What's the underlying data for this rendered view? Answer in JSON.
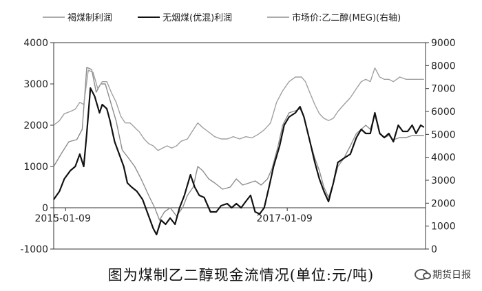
{
  "chart_data": {
    "type": "line",
    "legend": [
      {
        "name": "褐煤制利润",
        "color": "#909090"
      },
      {
        "name": "无烟煤(优混)利润",
        "color": "#111111"
      },
      {
        "name": "市场价:乙二醇(MEG)(右轴)",
        "color": "#909090"
      }
    ],
    "legend_position": "top",
    "x_axis": {
      "range": [
        "2014-12-01",
        "2018-04-10"
      ],
      "tick_labels": [
        {
          "date": "2015-01-09",
          "label": "2015-01-09"
        },
        {
          "date": "2017-01-09",
          "label": "2017-01-09"
        }
      ]
    },
    "y_left": {
      "range": [
        -1000,
        4000
      ],
      "ticks": [
        -1000,
        0,
        1000,
        2000,
        3000,
        4000
      ]
    },
    "y_right": {
      "range": [
        0,
        9000
      ],
      "ticks": [
        0,
        1000,
        2000,
        3000,
        4000,
        5000,
        6000,
        7000,
        8000,
        9000
      ]
    },
    "grid": false,
    "series": [
      {
        "name": "褐煤制利润",
        "axis": "left",
        "color": "#8c8c8c",
        "points": [
          [
            "2014-12-01",
            1000
          ],
          [
            "2014-12-25",
            1300
          ],
          [
            "2015-01-20",
            1600
          ],
          [
            "2015-02-15",
            1650
          ],
          [
            "2015-03-05",
            1900
          ],
          [
            "2015-03-20",
            3400
          ],
          [
            "2015-04-05",
            3350
          ],
          [
            "2015-04-20",
            2800
          ],
          [
            "2015-05-05",
            3000
          ],
          [
            "2015-05-20",
            3000
          ],
          [
            "2015-06-05",
            2600
          ],
          [
            "2015-06-25",
            2100
          ],
          [
            "2015-07-15",
            1400
          ],
          [
            "2015-08-05",
            1200
          ],
          [
            "2015-08-25",
            1000
          ],
          [
            "2015-09-15",
            700
          ],
          [
            "2015-10-10",
            300
          ],
          [
            "2015-10-30",
            0
          ],
          [
            "2015-11-15",
            -300
          ],
          [
            "2015-12-01",
            -100
          ],
          [
            "2015-12-20",
            0
          ],
          [
            "2016-01-10",
            -200
          ],
          [
            "2016-01-30",
            0
          ],
          [
            "2016-02-15",
            300
          ],
          [
            "2016-03-05",
            500
          ],
          [
            "2016-03-20",
            1000
          ],
          [
            "2016-04-05",
            900
          ],
          [
            "2016-04-25",
            700
          ],
          [
            "2016-05-15",
            600
          ],
          [
            "2016-06-10",
            450
          ],
          [
            "2016-07-05",
            500
          ],
          [
            "2016-07-25",
            700
          ],
          [
            "2016-08-15",
            550
          ],
          [
            "2016-09-05",
            600
          ],
          [
            "2016-09-25",
            650
          ],
          [
            "2016-10-15",
            550
          ],
          [
            "2016-11-05",
            700
          ],
          [
            "2016-11-20",
            950
          ],
          [
            "2016-12-10",
            1500
          ],
          [
            "2016-12-25",
            2000
          ],
          [
            "2017-01-15",
            2300
          ],
          [
            "2017-02-05",
            2350
          ],
          [
            "2017-02-20",
            2400
          ],
          [
            "2017-03-05",
            2200
          ],
          [
            "2017-03-25",
            1600
          ],
          [
            "2017-04-10",
            1200
          ],
          [
            "2017-04-25",
            900
          ],
          [
            "2017-05-10",
            500
          ],
          [
            "2017-05-25",
            250
          ],
          [
            "2017-06-10",
            600
          ],
          [
            "2017-06-25",
            1000
          ],
          [
            "2017-07-15",
            1200
          ],
          [
            "2017-08-05",
            1500
          ],
          [
            "2017-08-25",
            1800
          ],
          [
            "2017-09-10",
            1900
          ],
          [
            "2017-09-25",
            2000
          ],
          [
            "2017-10-10",
            1900
          ],
          [
            "2017-10-25",
            2250
          ],
          [
            "2017-11-10",
            1800
          ],
          [
            "2017-11-25",
            1700
          ],
          [
            "2017-12-10",
            1750
          ],
          [
            "2017-12-25",
            1650
          ],
          [
            "2018-01-15",
            1700
          ],
          [
            "2018-02-05",
            1700
          ],
          [
            "2018-02-25",
            1750
          ],
          [
            "2018-03-20",
            1750
          ],
          [
            "2018-04-05",
            1750
          ]
        ]
      },
      {
        "name": "无烟煤(优混)利润",
        "axis": "left",
        "color": "#111111",
        "points": [
          [
            "2014-12-01",
            200
          ],
          [
            "2014-12-20",
            400
          ],
          [
            "2015-01-05",
            700
          ],
          [
            "2015-01-25",
            900
          ],
          [
            "2015-02-10",
            1000
          ],
          [
            "2015-02-25",
            1300
          ],
          [
            "2015-03-10",
            1000
          ],
          [
            "2015-03-20",
            1800
          ],
          [
            "2015-04-01",
            2900
          ],
          [
            "2015-04-15",
            2700
          ],
          [
            "2015-05-01",
            2300
          ],
          [
            "2015-05-10",
            2500
          ],
          [
            "2015-05-25",
            2400
          ],
          [
            "2015-06-05",
            2100
          ],
          [
            "2015-06-20",
            1600
          ],
          [
            "2015-07-05",
            1300
          ],
          [
            "2015-07-20",
            1000
          ],
          [
            "2015-08-01",
            600
          ],
          [
            "2015-08-15",
            500
          ],
          [
            "2015-09-01",
            400
          ],
          [
            "2015-09-20",
            200
          ],
          [
            "2015-10-10",
            -200
          ],
          [
            "2015-10-25",
            -500
          ],
          [
            "2015-11-05",
            -650
          ],
          [
            "2015-11-20",
            -300
          ],
          [
            "2015-12-05",
            -400
          ],
          [
            "2015-12-20",
            -250
          ],
          [
            "2016-01-05",
            -400
          ],
          [
            "2016-01-20",
            0
          ],
          [
            "2016-02-05",
            300
          ],
          [
            "2016-02-25",
            800
          ],
          [
            "2016-03-10",
            500
          ],
          [
            "2016-03-25",
            300
          ],
          [
            "2016-04-10",
            250
          ],
          [
            "2016-05-01",
            -100
          ],
          [
            "2016-05-20",
            -100
          ],
          [
            "2016-06-05",
            50
          ],
          [
            "2016-06-25",
            100
          ],
          [
            "2016-07-10",
            0
          ],
          [
            "2016-07-25",
            100
          ],
          [
            "2016-08-10",
            0
          ],
          [
            "2016-08-25",
            150
          ],
          [
            "2016-09-10",
            300
          ],
          [
            "2016-09-25",
            -100
          ],
          [
            "2016-10-10",
            -150
          ],
          [
            "2016-10-25",
            0
          ],
          [
            "2016-11-10",
            500
          ],
          [
            "2016-11-25",
            1000
          ],
          [
            "2016-12-15",
            1500
          ],
          [
            "2016-12-30",
            2000
          ],
          [
            "2017-01-15",
            2200
          ],
          [
            "2017-02-05",
            2300
          ],
          [
            "2017-02-20",
            2450
          ],
          [
            "2017-03-05",
            2200
          ],
          [
            "2017-03-25",
            1600
          ],
          [
            "2017-04-10",
            1100
          ],
          [
            "2017-04-25",
            700
          ],
          [
            "2017-05-10",
            400
          ],
          [
            "2017-05-25",
            150
          ],
          [
            "2017-06-10",
            600
          ],
          [
            "2017-06-25",
            1100
          ],
          [
            "2017-07-15",
            1200
          ],
          [
            "2017-08-05",
            1300
          ],
          [
            "2017-08-25",
            1700
          ],
          [
            "2017-09-10",
            1900
          ],
          [
            "2017-09-25",
            1800
          ],
          [
            "2017-10-10",
            1800
          ],
          [
            "2017-10-25",
            2300
          ],
          [
            "2017-11-10",
            1800
          ],
          [
            "2017-11-25",
            1700
          ],
          [
            "2017-12-10",
            1800
          ],
          [
            "2017-12-25",
            1600
          ],
          [
            "2018-01-10",
            2000
          ],
          [
            "2018-01-25",
            1850
          ],
          [
            "2018-02-10",
            1850
          ],
          [
            "2018-02-25",
            2000
          ],
          [
            "2018-03-10",
            1800
          ],
          [
            "2018-03-25",
            2000
          ],
          [
            "2018-04-05",
            1950
          ]
        ]
      },
      {
        "name": "市场价:乙二醇(MEG)(右轴)",
        "axis": "right",
        "color": "#a0a0a0",
        "points": [
          [
            "2014-12-01",
            5400
          ],
          [
            "2014-12-20",
            5600
          ],
          [
            "2015-01-05",
            5900
          ],
          [
            "2015-01-25",
            6000
          ],
          [
            "2015-02-10",
            6100
          ],
          [
            "2015-02-25",
            6400
          ],
          [
            "2015-03-10",
            6300
          ],
          [
            "2015-03-25",
            7800
          ],
          [
            "2015-04-10",
            7700
          ],
          [
            "2015-04-25",
            7000
          ],
          [
            "2015-05-10",
            7300
          ],
          [
            "2015-05-25",
            7300
          ],
          [
            "2015-06-10",
            6800
          ],
          [
            "2015-06-25",
            6400
          ],
          [
            "2015-07-10",
            5800
          ],
          [
            "2015-07-25",
            5500
          ],
          [
            "2015-08-10",
            5500
          ],
          [
            "2015-08-25",
            5300
          ],
          [
            "2015-09-10",
            5100
          ],
          [
            "2015-09-25",
            4800
          ],
          [
            "2015-10-10",
            4600
          ],
          [
            "2015-10-25",
            4500
          ],
          [
            "2015-11-10",
            4300
          ],
          [
            "2015-11-25",
            4400
          ],
          [
            "2015-12-10",
            4500
          ],
          [
            "2015-12-25",
            4400
          ],
          [
            "2016-01-10",
            4500
          ],
          [
            "2016-01-25",
            4700
          ],
          [
            "2016-02-15",
            4800
          ],
          [
            "2016-03-05",
            5200
          ],
          [
            "2016-03-20",
            5500
          ],
          [
            "2016-04-05",
            5300
          ],
          [
            "2016-04-25",
            5100
          ],
          [
            "2016-05-15",
            4900
          ],
          [
            "2016-06-05",
            4800
          ],
          [
            "2016-06-25",
            4800
          ],
          [
            "2016-07-15",
            4900
          ],
          [
            "2016-08-05",
            4800
          ],
          [
            "2016-08-25",
            4900
          ],
          [
            "2016-09-15",
            4850
          ],
          [
            "2016-10-05",
            5000
          ],
          [
            "2016-10-25",
            5200
          ],
          [
            "2016-11-15",
            5500
          ],
          [
            "2016-12-05",
            6400
          ],
          [
            "2016-12-25",
            6900
          ],
          [
            "2017-01-15",
            7300
          ],
          [
            "2017-02-05",
            7500
          ],
          [
            "2017-02-25",
            7500
          ],
          [
            "2017-03-10",
            7300
          ],
          [
            "2017-03-25",
            6800
          ],
          [
            "2017-04-10",
            6300
          ],
          [
            "2017-04-25",
            5900
          ],
          [
            "2017-05-10",
            5700
          ],
          [
            "2017-05-25",
            5600
          ],
          [
            "2017-06-10",
            5700
          ],
          [
            "2017-06-25",
            6000
          ],
          [
            "2017-07-15",
            6300
          ],
          [
            "2017-08-05",
            6600
          ],
          [
            "2017-08-25",
            7000
          ],
          [
            "2017-09-10",
            7300
          ],
          [
            "2017-09-25",
            7400
          ],
          [
            "2017-10-10",
            7300
          ],
          [
            "2017-10-25",
            7900
          ],
          [
            "2017-11-10",
            7500
          ],
          [
            "2017-11-25",
            7400
          ],
          [
            "2017-12-10",
            7400
          ],
          [
            "2017-12-25",
            7300
          ],
          [
            "2018-01-15",
            7500
          ],
          [
            "2018-02-05",
            7400
          ],
          [
            "2018-02-25",
            7400
          ],
          [
            "2018-03-20",
            7400
          ],
          [
            "2018-04-05",
            7400
          ]
        ]
      }
    ]
  },
  "caption": "图为煤制乙二醇现金流情况(单位:元/吨)",
  "watermark": "期货日报"
}
